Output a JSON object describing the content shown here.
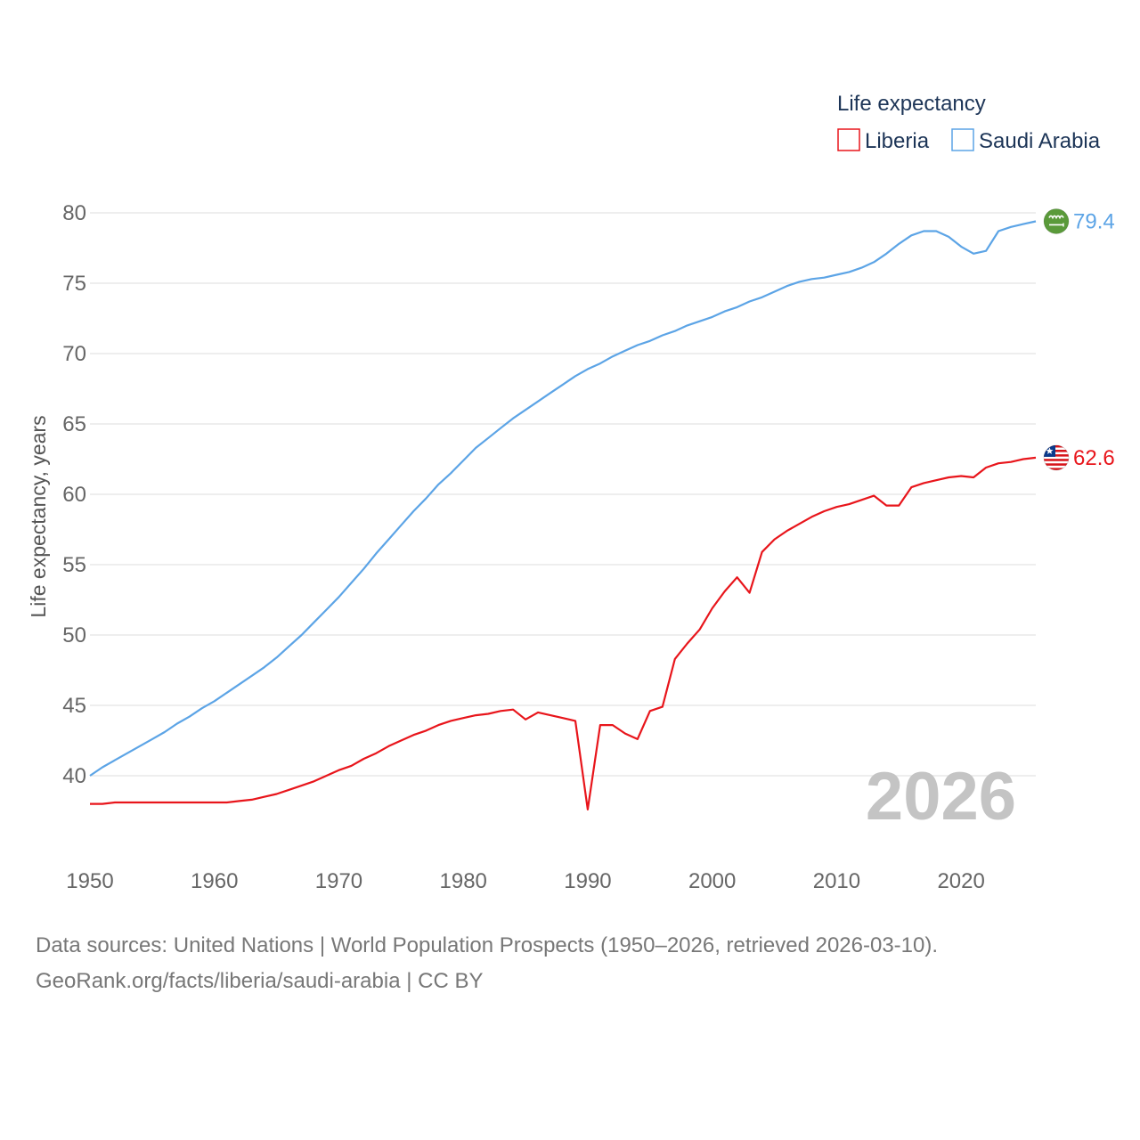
{
  "chart_data": {
    "type": "line",
    "title": "",
    "ylabel": "Life expectancy, years",
    "xlabel": "",
    "xlim": [
      1950,
      2026
    ],
    "ylim": [
      35,
      82
    ],
    "x_ticks": [
      "1950",
      "1960",
      "1970",
      "1980",
      "1990",
      "2000",
      "2010",
      "2020"
    ],
    "y_ticks": [
      "40",
      "45",
      "50",
      "55",
      "60",
      "65",
      "70",
      "75",
      "80"
    ],
    "grid": true,
    "legend_title": "Life expectancy",
    "legend_position": "top-right",
    "watermark_year": "2026",
    "x": [
      1950,
      1951,
      1952,
      1953,
      1954,
      1955,
      1956,
      1957,
      1958,
      1959,
      1960,
      1961,
      1962,
      1963,
      1964,
      1965,
      1966,
      1967,
      1968,
      1969,
      1970,
      1971,
      1972,
      1973,
      1974,
      1975,
      1976,
      1977,
      1978,
      1979,
      1980,
      1981,
      1982,
      1983,
      1984,
      1985,
      1986,
      1987,
      1988,
      1989,
      1990,
      1991,
      1992,
      1993,
      1994,
      1995,
      1996,
      1997,
      1998,
      1999,
      2000,
      2001,
      2002,
      2003,
      2004,
      2005,
      2006,
      2007,
      2008,
      2009,
      2010,
      2011,
      2012,
      2013,
      2014,
      2015,
      2016,
      2017,
      2018,
      2019,
      2020,
      2021,
      2022,
      2023,
      2024,
      2025,
      2026
    ],
    "series": [
      {
        "name": "Liberia",
        "color": "#e8151b",
        "flag": "liberia-flag",
        "end_label": "62.6",
        "values": [
          38.0,
          38.0,
          38.1,
          38.1,
          38.1,
          38.1,
          38.1,
          38.1,
          38.1,
          38.1,
          38.1,
          38.1,
          38.2,
          38.3,
          38.5,
          38.7,
          39.0,
          39.3,
          39.6,
          40.0,
          40.4,
          40.7,
          41.2,
          41.6,
          42.1,
          42.5,
          42.9,
          43.2,
          43.6,
          43.9,
          44.1,
          44.3,
          44.4,
          44.6,
          44.7,
          44.0,
          44.5,
          44.3,
          44.1,
          43.9,
          37.6,
          43.6,
          43.6,
          43.0,
          42.6,
          44.6,
          44.9,
          48.3,
          49.4,
          50.4,
          51.9,
          53.1,
          54.1,
          53.0,
          55.9,
          56.8,
          57.4,
          57.9,
          58.4,
          58.8,
          59.1,
          59.3,
          59.6,
          59.9,
          59.2,
          59.2,
          60.5,
          60.8,
          61.0,
          61.2,
          61.3,
          61.2,
          61.9,
          62.2,
          62.3,
          62.5,
          62.6
        ]
      },
      {
        "name": "Saudi Arabia",
        "color": "#5ca4e6",
        "flag": "saudi-arabia-flag",
        "end_label": "79.4",
        "values": [
          40.0,
          40.6,
          41.1,
          41.6,
          42.1,
          42.6,
          43.1,
          43.7,
          44.2,
          44.8,
          45.3,
          45.9,
          46.5,
          47.1,
          47.7,
          48.4,
          49.2,
          50.0,
          50.9,
          51.8,
          52.7,
          53.7,
          54.7,
          55.8,
          56.8,
          57.8,
          58.8,
          59.7,
          60.7,
          61.5,
          62.4,
          63.3,
          64.0,
          64.7,
          65.4,
          66.0,
          66.6,
          67.2,
          67.8,
          68.4,
          68.9,
          69.3,
          69.8,
          70.2,
          70.6,
          70.9,
          71.3,
          71.6,
          72.0,
          72.3,
          72.6,
          73.0,
          73.3,
          73.7,
          74.0,
          74.4,
          74.8,
          75.1,
          75.3,
          75.4,
          75.6,
          75.8,
          76.1,
          76.5,
          77.1,
          77.8,
          78.4,
          78.7,
          78.7,
          78.3,
          77.6,
          77.1,
          77.3,
          78.7,
          79.0,
          79.2,
          79.4
        ]
      }
    ]
  },
  "footer": {
    "line1": "Data sources: United Nations | World Population Prospects (1950–2026, retrieved 2026-03-10).",
    "line2": "GeoRank.org/facts/liberia/saudi-arabia | CC BY"
  }
}
